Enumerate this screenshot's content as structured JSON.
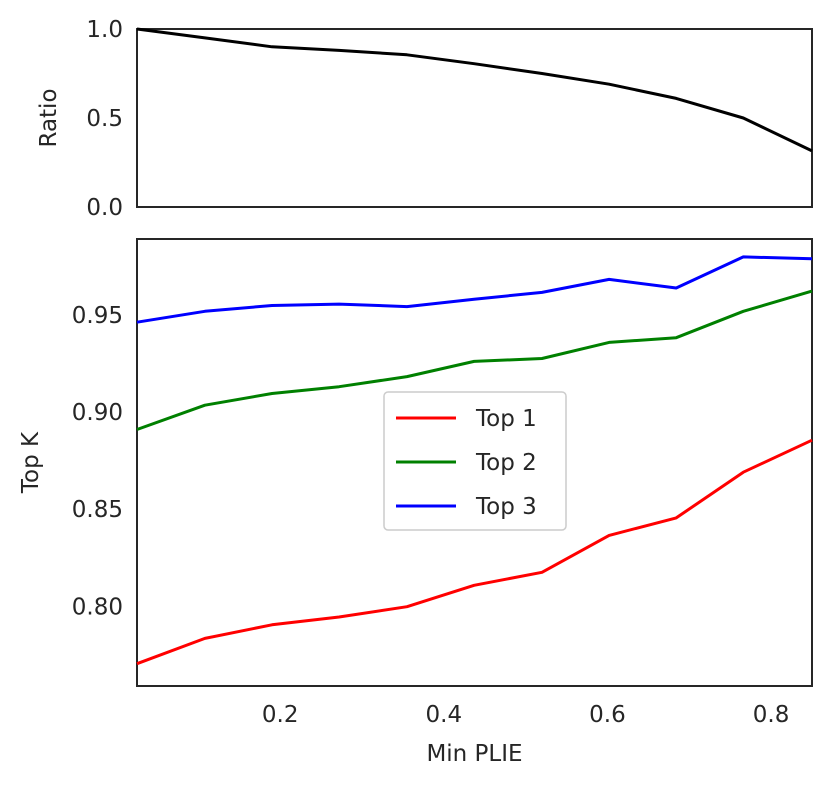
{
  "chart_data": [
    {
      "panel": "top",
      "type": "line",
      "xlabel": "",
      "ylabel": "Ratio",
      "xlim": [
        0.025,
        0.85
      ],
      "ylim": [
        0.0,
        1.0
      ],
      "yticks": [
        0.0,
        0.5,
        1.0
      ],
      "ytick_labels": [
        "0.0",
        "0.5",
        "1.0"
      ],
      "grid": false,
      "series": [
        {
          "color": "#000000",
          "x": [
            0.025,
            0.108,
            0.19,
            0.272,
            0.355,
            0.437,
            0.52,
            0.602,
            0.684,
            0.766,
            0.85
          ],
          "y": [
            1.0,
            0.95,
            0.9,
            0.88,
            0.855,
            0.805,
            0.75,
            0.69,
            0.61,
            0.5,
            0.315
          ]
        }
      ]
    },
    {
      "panel": "bottom",
      "type": "line",
      "xlabel": "Min PLIE",
      "ylabel": "Top K",
      "xlim": [
        0.025,
        0.85
      ],
      "ylim": [
        0.759,
        0.989
      ],
      "xticks": [
        0.2,
        0.4,
        0.6,
        0.8
      ],
      "xtick_labels": [
        "0.2",
        "0.4",
        "0.6",
        "0.8"
      ],
      "yticks": [
        0.8,
        0.85,
        0.9,
        0.95
      ],
      "ytick_labels": [
        "0.80",
        "0.85",
        "0.90",
        "0.95"
      ],
      "grid": false,
      "legend_position": "center",
      "series": [
        {
          "name": "Top 1",
          "color": "#ff0000",
          "x": [
            0.025,
            0.108,
            0.19,
            0.272,
            0.355,
            0.437,
            0.52,
            0.602,
            0.684,
            0.766,
            0.85
          ],
          "y": [
            0.7705,
            0.7835,
            0.7905,
            0.7945,
            0.7998,
            0.8108,
            0.8175,
            0.8365,
            0.8455,
            0.869,
            0.8855
          ]
        },
        {
          "name": "Top 2",
          "color": "#008000",
          "x": [
            0.025,
            0.108,
            0.19,
            0.272,
            0.355,
            0.437,
            0.52,
            0.602,
            0.684,
            0.766,
            0.85
          ],
          "y": [
            0.891,
            0.9035,
            0.9095,
            0.913,
            0.9182,
            0.926,
            0.9275,
            0.9358,
            0.9382,
            0.9518,
            0.9622
          ]
        },
        {
          "name": "Top 3",
          "color": "#0000ff",
          "x": [
            0.025,
            0.108,
            0.19,
            0.272,
            0.355,
            0.437,
            0.52,
            0.602,
            0.684,
            0.766,
            0.85
          ],
          "y": [
            0.9462,
            0.9518,
            0.9548,
            0.9555,
            0.9542,
            0.958,
            0.9615,
            0.9682,
            0.9638,
            0.9798,
            0.9788
          ]
        }
      ]
    }
  ]
}
